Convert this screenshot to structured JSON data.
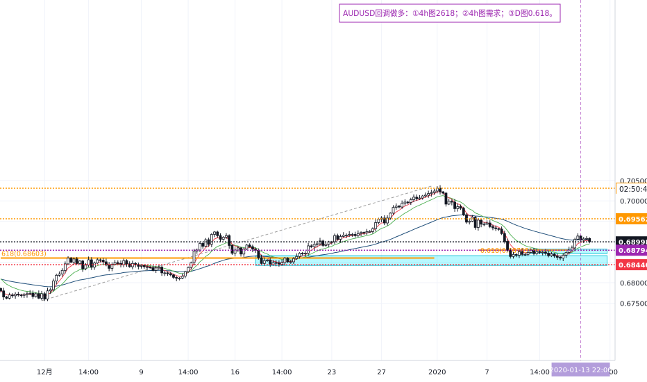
{
  "chart_data": {
    "type": "candlestick",
    "symbol": "AUDUSD",
    "annotation": "AUDUSD回调做多：①4h图2618；②4h图需求；③D图0.618。",
    "y_ticks": [
      "0.70500",
      "0.70000",
      "0.69500",
      "0.69000",
      "0.68500",
      "0.68000",
      "0.67500"
    ],
    "y_tick_values": [
      0.705,
      0.7,
      0.695,
      0.69,
      0.685,
      0.68,
      0.675
    ],
    "ylim": [
      0.6722,
      0.7078
    ],
    "x_ticks": [
      "12月",
      "14:00",
      "9",
      "14:00",
      "16",
      "14:00",
      "23",
      "27",
      "2020",
      "7",
      "14:00",
      "2:00"
    ],
    "x_tick_index": [
      15,
      30,
      48,
      64,
      80,
      96,
      113,
      130,
      149,
      166,
      184,
      208
    ],
    "levels": [
      {
        "label": "0.70310",
        "value": 0.7031,
        "color": "#ff9800",
        "style": "dotted"
      },
      {
        "label": "0.69562",
        "value": 0.69562,
        "color": "#ff9800",
        "style": "dotted"
      },
      {
        "label": "0.68998",
        "value": 0.68998,
        "color": "#131722",
        "style": "dotted"
      },
      {
        "label": "0.68794",
        "value": 0.68794,
        "color": "#9c27b0",
        "style": "dotted"
      },
      {
        "label": "0.68440",
        "value": 0.6844,
        "color": "#f23645",
        "style": "dotted"
      }
    ],
    "fib_left": {
      "label": "618(0.68603)",
      "value": 0.68603,
      "start_index": 0,
      "end_index": 148
    },
    "fib_right": {
      "label": "0.618(0.68795)",
      "value": 0.68795,
      "start_index": 163,
      "end_index": 194
    },
    "demand_zones": [
      {
        "from_index": 87,
        "to_index": 207,
        "top": 0.6866,
        "bottom": 0.6842
      },
      {
        "from_index": 180,
        "to_index": 207,
        "top": 0.6882,
        "bottom": 0.6871
      }
    ],
    "trend_line": {
      "from_index": 14,
      "from_value": 0.6756,
      "to_index": 147,
      "to_value": 0.7036
    },
    "time_label": "02:50:45",
    "cursor_date": "2020-01-13  22:00",
    "cursor_index": 198,
    "candle_count": 200,
    "close": [
      0.678,
      0.6765,
      0.6762,
      0.677,
      0.6768,
      0.6772,
      0.677,
      0.6769,
      0.6771,
      0.6773,
      0.6774,
      0.6766,
      0.6773,
      0.6762,
      0.6773,
      0.676,
      0.678,
      0.6783,
      0.6804,
      0.6818,
      0.6821,
      0.683,
      0.6846,
      0.686,
      0.685,
      0.6858,
      0.6847,
      0.6853,
      0.6834,
      0.6843,
      0.6856,
      0.6838,
      0.6848,
      0.6856,
      0.6855,
      0.6851,
      0.6843,
      0.6835,
      0.6845,
      0.6849,
      0.6847,
      0.6844,
      0.6854,
      0.6846,
      0.6839,
      0.6847,
      0.6844,
      0.684,
      0.6842,
      0.6839,
      0.6838,
      0.6837,
      0.683,
      0.6836,
      0.6838,
      0.6824,
      0.6824,
      0.6822,
      0.6819,
      0.6813,
      0.6811,
      0.6811,
      0.6816,
      0.6827,
      0.6837,
      0.6849,
      0.6877,
      0.688,
      0.6896,
      0.6889,
      0.6905,
      0.6894,
      0.6918,
      0.6924,
      0.6915,
      0.6906,
      0.6911,
      0.6915,
      0.6891,
      0.6872,
      0.688,
      0.6885,
      0.687,
      0.6882,
      0.6892,
      0.6888,
      0.6882,
      0.6879,
      0.6861,
      0.6847,
      0.6854,
      0.6855,
      0.6844,
      0.6849,
      0.6848,
      0.6845,
      0.6849,
      0.686,
      0.6851,
      0.6851,
      0.6859,
      0.6864,
      0.6872,
      0.6871,
      0.6872,
      0.689,
      0.6888,
      0.6894,
      0.6895,
      0.6902,
      0.6891,
      0.6894,
      0.69,
      0.69,
      0.6915,
      0.6906,
      0.6913,
      0.6916,
      0.6916,
      0.6918,
      0.6918,
      0.6915,
      0.692,
      0.6923,
      0.6922,
      0.6925,
      0.6925,
      0.6932,
      0.6947,
      0.6955,
      0.6958,
      0.6946,
      0.6958,
      0.697,
      0.6984,
      0.6987,
      0.6985,
      0.6994,
      0.6997,
      0.6996,
      0.7003,
      0.7009,
      0.7005,
      0.7007,
      0.7012,
      0.7014,
      0.7018,
      0.702,
      0.7024,
      0.7031,
      0.7022,
      0.7019,
      0.6992,
      0.6999,
      0.6997,
      0.6981,
      0.6986,
      0.6982,
      0.6966,
      0.6948,
      0.695,
      0.696,
      0.6935,
      0.6953,
      0.6943,
      0.6943,
      0.6946,
      0.6937,
      0.6934,
      0.6932,
      0.6931,
      0.692,
      0.6901,
      0.6879,
      0.6864,
      0.6869,
      0.6867,
      0.6876,
      0.6869,
      0.6869,
      0.6874,
      0.6879,
      0.6871,
      0.6876,
      0.6874,
      0.6875,
      0.6872,
      0.6866,
      0.687,
      0.6865,
      0.6862,
      0.686,
      0.6867,
      0.6874,
      0.688,
      0.6885,
      0.6906,
      0.6914,
      0.6904,
      0.6907,
      0.6908,
      0.69
    ]
  }
}
